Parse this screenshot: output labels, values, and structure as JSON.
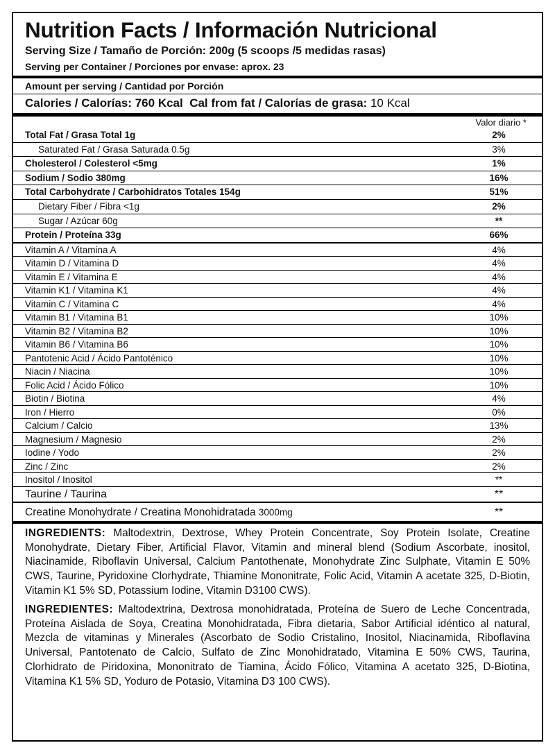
{
  "header": {
    "title": "Nutrition Facts / Información Nutricional",
    "serving_size": "Serving Size / Tamaño de Porción: 200g (5 scoops /5 medidas rasas)",
    "servings_per_container": "Serving per Container / Porciones por envase: aprox. 23"
  },
  "amount": {
    "label": "Amount per serving / Cantidad por Porción",
    "calories": "Calories / Calorías: 760 Kcal",
    "fat_label": "Cal from fat / Calorías de grasa:",
    "fat_value": "10 Kcal"
  },
  "daily_value_header": "Valor diario *",
  "main_rows": [
    [
      "Total Fat / Grasa Total 1g",
      "2%"
    ],
    [
      "Saturated Fat / Grasa Saturada 0.5g",
      "3%"
    ],
    [
      "Cholesterol / Colesterol <5mg",
      "1%"
    ],
    [
      "Sodium / Sodio 380mg",
      "16%"
    ],
    [
      "Total Carbohydrate / Carbohidratos Totales 154g",
      "51%"
    ],
    [
      "Dietary Fiber / Fibra  <1g",
      "2%"
    ],
    [
      "Sugar / Azúcar 60g",
      "**"
    ],
    [
      "Protein / Proteína 33g",
      "66%"
    ]
  ],
  "vitamin_rows": [
    [
      "Vitamin A / Vitamina A",
      "4%"
    ],
    [
      "Vitamin D / Vitamina D",
      "4%"
    ],
    [
      "Vitamin E / Vitamina E",
      "4%"
    ],
    [
      "Vitamin K1 / Vitamina K1",
      "4%"
    ],
    [
      "Vitamin C / Vitamina C",
      "4%"
    ],
    [
      "Vitamin B1 / Vitamina B1",
      "10%"
    ],
    [
      "Vitamin B2 / Vitamina B2",
      "10%"
    ],
    [
      "Vitamin B6 / Vitamina B6",
      "10%"
    ],
    [
      "Pantotenic Acid / Ácido Pantoténico",
      "10%"
    ],
    [
      "Niacin / Niacina",
      "10%"
    ],
    [
      "Folic Acid / Ácido Fólico",
      "10%"
    ],
    [
      "Biotin / Biotina",
      "4%"
    ],
    [
      "Iron / Hierro",
      "0%"
    ],
    [
      "Calcium / Calcio",
      "13%"
    ],
    [
      "Magnesium / Magnesio",
      "2%"
    ],
    [
      "Iodine / Yodo",
      "2%"
    ],
    [
      "Zinc / Zinc",
      "2%"
    ],
    [
      "Inositol / Inositol",
      "**"
    ]
  ],
  "taurine": [
    "Taurine / Taurina",
    "**"
  ],
  "creatine": {
    "label": "Creatine Monohydrate / Creatina Monohidratada",
    "amount": "3000mg",
    "value": "**"
  },
  "ingredients": [
    {
      "label": "INGREDIENTS:",
      "text": "Maltodextrin, Dextrose, Whey Protein Concentrate, Soy Protein Isolate, Creatine Monohydrate, Dietary Fiber, Artificial Flavor, Vitamin and mineral blend (Sodium Ascorbate, inositol, Niacinamide, Riboflavin Universal, Calcium Pantothenate, Monohydrate Zinc Sulphate, Vitamin E 50% CWS, Taurine, Pyridoxine Clorhydrate, Thiamine Mononitrate, Folic Acid, Vitamin A acetate 325, D-Biotin, Vitamin K1 5% SD, Potassium Iodine, Vitamin D3100 CWS)."
    },
    {
      "label": "INGREDIENTES:",
      "text": "Maltodextrina, Dextrosa monohidratada, Proteína de Suero de Leche Concentrada, Proteína Aislada de Soya, Creatina Monohidratada, Fibra dietaria, Sabor Artificial idéntico al natural, Mezcla de vitaminas y Minerales (Ascorbato de Sodio Cristalino, Inositol, Niacinamida, Riboflavina Universal, Pantotenato de Calcio, Sulfato de Zinc Monohidratado, Vitamina E 50% CWS, Taurina, Clorhidrato de Piridoxina, Mononitrato de Tiamina, Ácido Fólico, Vitamina A acetato 325, D-Biotina, Vitamina K1 5% SD, Yoduro de Potasio, Vitamina D3 100 CWS)."
    }
  ]
}
